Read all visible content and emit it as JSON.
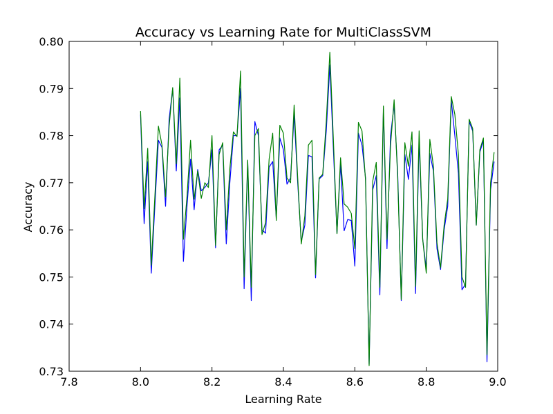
{
  "chart_data": {
    "type": "line",
    "title": "Accuracy vs Learning Rate for MultiClassSVM",
    "xlabel": "Learning Rate",
    "ylabel": "Accuracy",
    "xlim": [
      7.8,
      9.0
    ],
    "ylim": [
      0.73,
      0.8
    ],
    "xticks": [
      "7.8",
      "8.0",
      "8.2",
      "8.4",
      "8.6",
      "8.8",
      "9.0"
    ],
    "yticks": [
      "0.73",
      "0.74",
      "0.75",
      "0.76",
      "0.77",
      "0.78",
      "0.79",
      "0.80"
    ],
    "grid": false,
    "legend": false,
    "x": [
      8.0,
      8.01,
      8.02,
      8.03,
      8.04,
      8.05,
      8.06,
      8.07,
      8.08,
      8.09,
      8.1,
      8.11,
      8.12,
      8.13,
      8.14,
      8.15,
      8.16,
      8.17,
      8.18,
      8.19,
      8.2,
      8.21,
      8.22,
      8.23,
      8.24,
      8.25,
      8.26,
      8.27,
      8.28,
      8.29,
      8.3,
      8.31,
      8.32,
      8.33,
      8.34,
      8.35,
      8.36,
      8.37,
      8.38,
      8.39,
      8.4,
      8.41,
      8.42,
      8.43,
      8.44,
      8.45,
      8.46,
      8.47,
      8.48,
      8.49,
      8.5,
      8.51,
      8.52,
      8.53,
      8.54,
      8.55,
      8.56,
      8.57,
      8.58,
      8.59,
      8.6,
      8.61,
      8.62,
      8.63,
      8.64,
      8.65,
      8.66,
      8.67,
      8.68,
      8.69,
      8.7,
      8.71,
      8.72,
      8.73,
      8.74,
      8.75,
      8.76,
      8.77,
      8.78,
      8.79,
      8.8,
      8.81,
      8.82,
      8.83,
      8.84,
      8.85,
      8.86,
      8.87,
      8.88,
      8.89,
      8.9,
      8.91,
      8.92,
      8.93,
      8.94,
      8.95,
      8.96,
      8.97,
      8.98,
      8.99
    ],
    "series": [
      {
        "color": "#0000ff",
        "values": [
          0.7845,
          0.7613,
          0.7745,
          0.7508,
          0.765,
          0.779,
          0.7775,
          0.765,
          0.7835,
          0.79,
          0.7725,
          0.788,
          0.7533,
          0.765,
          0.775,
          0.7643,
          0.7728,
          0.7683,
          0.769,
          0.77,
          0.777,
          0.7562,
          0.777,
          0.778,
          0.757,
          0.77,
          0.78,
          0.78,
          0.79,
          0.7475,
          0.7745,
          0.745,
          0.783,
          0.78,
          0.76,
          0.7593,
          0.7733,
          0.7745,
          0.7625,
          0.7795,
          0.777,
          0.7697,
          0.771,
          0.7845,
          0.77,
          0.7575,
          0.761,
          0.7758,
          0.7755,
          0.7498,
          0.7708,
          0.7715,
          0.781,
          0.795,
          0.777,
          0.7593,
          0.774,
          0.7598,
          0.7622,
          0.762,
          0.7523,
          0.7805,
          0.778,
          0.771,
          0.7315,
          0.7685,
          0.7715,
          0.7462,
          0.7855,
          0.756,
          0.78,
          0.7865,
          0.772,
          0.745,
          0.776,
          0.7707,
          0.778,
          0.7465,
          0.779,
          0.758,
          0.7517,
          0.7762,
          0.7725,
          0.756,
          0.7516,
          0.76,
          0.765,
          0.7875,
          0.78,
          0.772,
          0.7473,
          0.7485,
          0.783,
          0.781,
          0.761,
          0.7765,
          0.779,
          0.732,
          0.7685,
          0.7745
        ]
      },
      {
        "color": "#008000",
        "values": [
          0.7852,
          0.7645,
          0.7773,
          0.7525,
          0.767,
          0.782,
          0.778,
          0.767,
          0.782,
          0.7902,
          0.774,
          0.7922,
          0.758,
          0.767,
          0.779,
          0.7665,
          0.7725,
          0.7667,
          0.77,
          0.769,
          0.78,
          0.7567,
          0.776,
          0.7785,
          0.76,
          0.773,
          0.7808,
          0.7798,
          0.7937,
          0.75,
          0.7748,
          0.7478,
          0.78,
          0.7815,
          0.759,
          0.7615,
          0.775,
          0.7805,
          0.762,
          0.7822,
          0.7805,
          0.771,
          0.77,
          0.7865,
          0.771,
          0.757,
          0.763,
          0.778,
          0.779,
          0.7505,
          0.771,
          0.7718,
          0.783,
          0.7977,
          0.779,
          0.7592,
          0.7753,
          0.7655,
          0.7648,
          0.7635,
          0.756,
          0.7828,
          0.781,
          0.7705,
          0.7312,
          0.7703,
          0.7743,
          0.7478,
          0.7863,
          0.758,
          0.778,
          0.7876,
          0.771,
          0.7452,
          0.7785,
          0.7735,
          0.7808,
          0.748,
          0.781,
          0.758,
          0.7508,
          0.7792,
          0.7735,
          0.7572,
          0.752,
          0.761,
          0.7665,
          0.7883,
          0.7845,
          0.776,
          0.75,
          0.7478,
          0.7835,
          0.7815,
          0.761,
          0.777,
          0.7795,
          0.7335,
          0.77,
          0.7765
        ]
      }
    ]
  }
}
